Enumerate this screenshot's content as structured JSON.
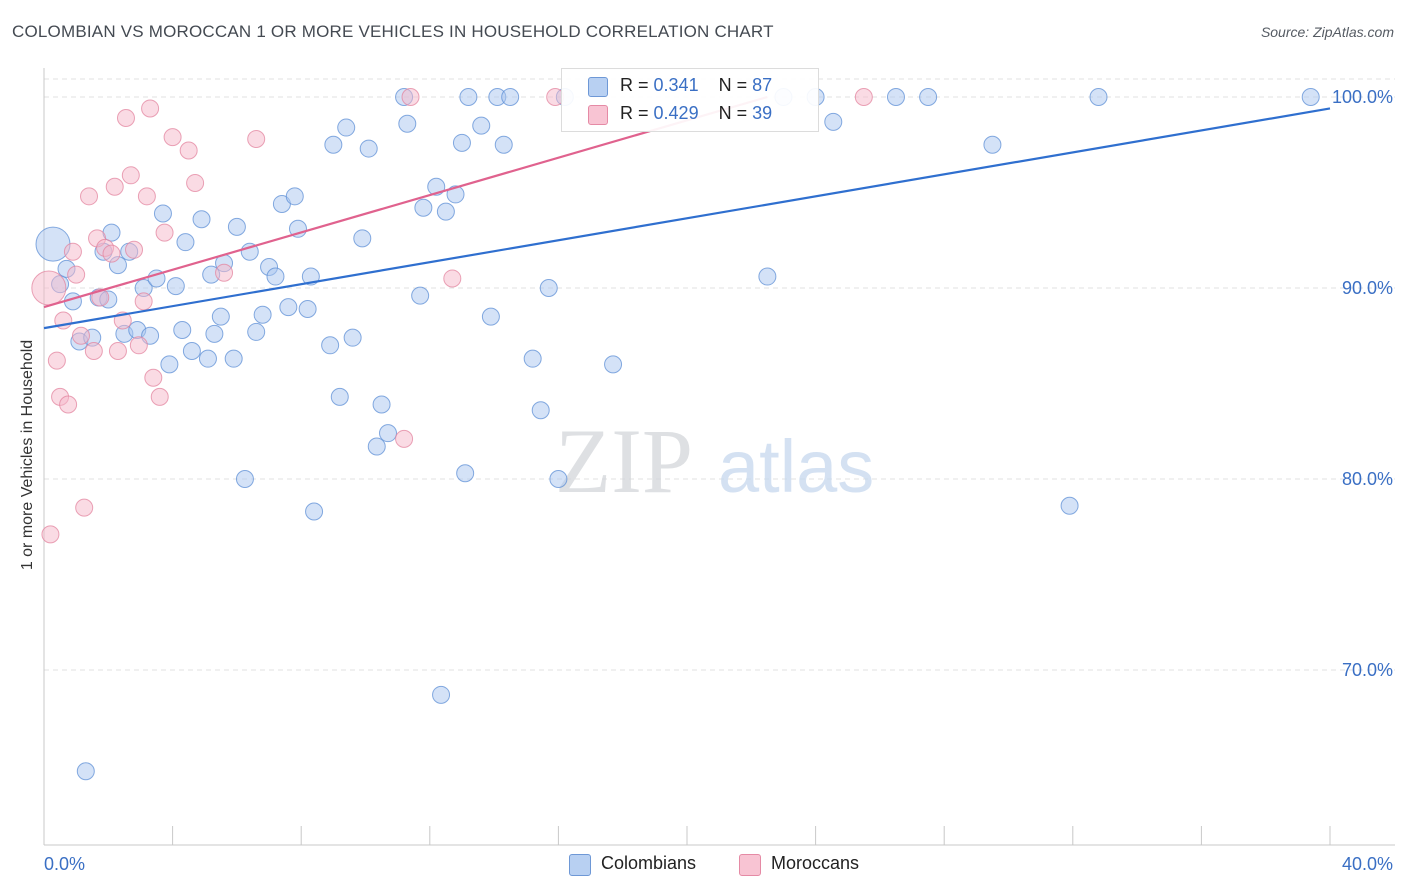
{
  "title": "COLOMBIAN VS MOROCCAN 1 OR MORE VEHICLES IN HOUSEHOLD CORRELATION CHART",
  "source": "Source: ZipAtlas.com",
  "watermark": {
    "zip": "ZIP",
    "atlas": "atlas"
  },
  "legend": {
    "rows": [
      {
        "r_label": "R =",
        "r_value": "0.341",
        "n_label": "N =",
        "n_value": "87"
      },
      {
        "r_label": "R =",
        "r_value": "0.429",
        "n_label": "N =",
        "n_value": "39"
      }
    ]
  },
  "bottom_legend": {
    "colombians": "Colombians",
    "moroccans": "Moroccans"
  },
  "colors": {
    "blue_fill": "#a9c6f0",
    "blue_stroke": "#5d8fd6",
    "blue_line": "#2f6fcf",
    "pink_fill": "#f6b8c9",
    "pink_stroke": "#e3849f",
    "pink_line": "#e0628e",
    "axis_text": "#3a6fc4",
    "grid": "#e2e2e2"
  },
  "chart_data": {
    "type": "scatter",
    "title": "COLOMBIAN VS MOROCCAN 1 OR MORE VEHICLES IN HOUSEHOLD CORRELATION CHART",
    "xlabel": "",
    "ylabel": "1 or more Vehicles in Household",
    "xlim": [
      0,
      40
    ],
    "ylim": [
      61,
      101.5
    ],
    "x_tick_labels": [
      "0.0%",
      "40.0%"
    ],
    "y_ticks": [
      {
        "value": 100,
        "label": "100.0%"
      },
      {
        "value": 90,
        "label": "90.0%"
      },
      {
        "value": 80,
        "label": "80.0%"
      },
      {
        "value": 70,
        "label": "70.0%"
      }
    ],
    "series": [
      {
        "name": "Colombians",
        "r": 0.341,
        "n": 87,
        "trend": {
          "x": [
            0,
            40
          ],
          "y": [
            87.9,
            99.4
          ]
        },
        "points": [
          {
            "x": 0.28,
            "y": 92.3,
            "big": true
          },
          {
            "x": 0.5,
            "y": 90.2
          },
          {
            "x": 0.7,
            "y": 91.0
          },
          {
            "x": 0.9,
            "y": 89.3
          },
          {
            "x": 1.1,
            "y": 87.2
          },
          {
            "x": 1.3,
            "y": 64.7
          },
          {
            "x": 1.5,
            "y": 87.4
          },
          {
            "x": 1.7,
            "y": 89.5
          },
          {
            "x": 1.85,
            "y": 91.9
          },
          {
            "x": 2.1,
            "y": 92.9
          },
          {
            "x": 2.3,
            "y": 91.2
          },
          {
            "x": 2.5,
            "y": 87.6
          },
          {
            "x": 2.65,
            "y": 91.9
          },
          {
            "x": 2.9,
            "y": 87.8
          },
          {
            "x": 3.1,
            "y": 90.0
          },
          {
            "x": 3.3,
            "y": 87.5
          },
          {
            "x": 3.5,
            "y": 90.5
          },
          {
            "x": 3.7,
            "y": 93.9
          },
          {
            "x": 3.9,
            "y": 86.0
          },
          {
            "x": 4.1,
            "y": 90.1
          },
          {
            "x": 4.3,
            "y": 87.8
          },
          {
            "x": 4.4,
            "y": 92.4
          },
          {
            "x": 4.6,
            "y": 86.7
          },
          {
            "x": 4.9,
            "y": 93.6
          },
          {
            "x": 5.1,
            "y": 86.3
          },
          {
            "x": 5.3,
            "y": 87.6
          },
          {
            "x": 5.5,
            "y": 88.5
          },
          {
            "x": 5.6,
            "y": 91.3
          },
          {
            "x": 5.9,
            "y": 86.3
          },
          {
            "x": 6.0,
            "y": 93.2
          },
          {
            "x": 6.25,
            "y": 80.0
          },
          {
            "x": 6.4,
            "y": 91.9
          },
          {
            "x": 6.6,
            "y": 87.7
          },
          {
            "x": 6.8,
            "y": 88.6
          },
          {
            "x": 7.0,
            "y": 91.1
          },
          {
            "x": 7.2,
            "y": 90.6
          },
          {
            "x": 7.4,
            "y": 94.4
          },
          {
            "x": 7.6,
            "y": 89.0
          },
          {
            "x": 7.8,
            "y": 94.8
          },
          {
            "x": 7.9,
            "y": 93.1
          },
          {
            "x": 8.2,
            "y": 88.9
          },
          {
            "x": 8.3,
            "y": 90.6
          },
          {
            "x": 8.4,
            "y": 78.3
          },
          {
            "x": 8.9,
            "y": 87.0
          },
          {
            "x": 9.0,
            "y": 97.5
          },
          {
            "x": 9.2,
            "y": 84.3
          },
          {
            "x": 9.4,
            "y": 98.4
          },
          {
            "x": 9.6,
            "y": 87.4
          },
          {
            "x": 9.9,
            "y": 92.6
          },
          {
            "x": 10.1,
            "y": 97.3
          },
          {
            "x": 10.35,
            "y": 81.7
          },
          {
            "x": 10.5,
            "y": 83.9
          },
          {
            "x": 10.7,
            "y": 82.4
          },
          {
            "x": 11.2,
            "y": 100.0
          },
          {
            "x": 11.3,
            "y": 98.6
          },
          {
            "x": 11.7,
            "y": 89.6
          },
          {
            "x": 11.8,
            "y": 94.2
          },
          {
            "x": 12.2,
            "y": 95.3
          },
          {
            "x": 12.35,
            "y": 68.7
          },
          {
            "x": 12.5,
            "y": 94.0
          },
          {
            "x": 12.8,
            "y": 94.9
          },
          {
            "x": 13.0,
            "y": 97.6
          },
          {
            "x": 13.1,
            "y": 80.3
          },
          {
            "x": 13.2,
            "y": 100.0
          },
          {
            "x": 13.6,
            "y": 98.5
          },
          {
            "x": 13.9,
            "y": 88.5
          },
          {
            "x": 14.1,
            "y": 100.0
          },
          {
            "x": 14.3,
            "y": 97.5
          },
          {
            "x": 14.5,
            "y": 100.0
          },
          {
            "x": 15.2,
            "y": 86.3
          },
          {
            "x": 15.45,
            "y": 83.6
          },
          {
            "x": 15.7,
            "y": 90.0
          },
          {
            "x": 16.0,
            "y": 80.0
          },
          {
            "x": 16.2,
            "y": 100.0
          },
          {
            "x": 17.7,
            "y": 86.0
          },
          {
            "x": 22.5,
            "y": 90.6
          },
          {
            "x": 24.0,
            "y": 100.0
          },
          {
            "x": 24.55,
            "y": 98.7
          },
          {
            "x": 26.5,
            "y": 100.0
          },
          {
            "x": 27.5,
            "y": 100.0
          },
          {
            "x": 29.5,
            "y": 97.5
          },
          {
            "x": 31.9,
            "y": 78.6
          },
          {
            "x": 32.8,
            "y": 100.0
          },
          {
            "x": 39.4,
            "y": 100.0
          },
          {
            "x": 23.0,
            "y": 100.0
          },
          {
            "x": 5.2,
            "y": 90.7
          },
          {
            "x": 2.0,
            "y": 89.4
          }
        ]
      },
      {
        "name": "Moroccans",
        "r": 0.429,
        "n": 39,
        "trend": {
          "x": [
            0,
            22.5
          ],
          "y": [
            89.0,
            100.0
          ]
        },
        "points": [
          {
            "x": 0.15,
            "y": 90.0,
            "big": true
          },
          {
            "x": 0.2,
            "y": 77.1
          },
          {
            "x": 0.4,
            "y": 86.2
          },
          {
            "x": 0.5,
            "y": 84.3
          },
          {
            "x": 0.6,
            "y": 88.3
          },
          {
            "x": 0.75,
            "y": 83.9
          },
          {
            "x": 0.9,
            "y": 91.9
          },
          {
            "x": 1.0,
            "y": 90.7
          },
          {
            "x": 1.15,
            "y": 87.5
          },
          {
            "x": 1.25,
            "y": 78.5
          },
          {
            "x": 1.4,
            "y": 94.8
          },
          {
            "x": 1.55,
            "y": 86.7
          },
          {
            "x": 1.65,
            "y": 92.6
          },
          {
            "x": 1.75,
            "y": 89.5
          },
          {
            "x": 1.9,
            "y": 92.1
          },
          {
            "x": 2.1,
            "y": 91.8
          },
          {
            "x": 2.2,
            "y": 95.3
          },
          {
            "x": 2.3,
            "y": 86.7
          },
          {
            "x": 2.45,
            "y": 88.3
          },
          {
            "x": 2.55,
            "y": 98.9
          },
          {
            "x": 2.7,
            "y": 95.9
          },
          {
            "x": 2.8,
            "y": 92.0
          },
          {
            "x": 2.95,
            "y": 87.0
          },
          {
            "x": 3.1,
            "y": 89.3
          },
          {
            "x": 3.2,
            "y": 94.8
          },
          {
            "x": 3.3,
            "y": 99.4
          },
          {
            "x": 3.4,
            "y": 85.3
          },
          {
            "x": 3.6,
            "y": 84.3
          },
          {
            "x": 3.75,
            "y": 92.9
          },
          {
            "x": 4.0,
            "y": 97.9
          },
          {
            "x": 4.5,
            "y": 97.2
          },
          {
            "x": 4.7,
            "y": 95.5
          },
          {
            "x": 5.6,
            "y": 90.8
          },
          {
            "x": 6.6,
            "y": 97.8
          },
          {
            "x": 11.2,
            "y": 82.1
          },
          {
            "x": 11.4,
            "y": 100.0
          },
          {
            "x": 12.7,
            "y": 90.5
          },
          {
            "x": 15.9,
            "y": 100.0
          },
          {
            "x": 25.5,
            "y": 100.0
          }
        ]
      }
    ]
  }
}
